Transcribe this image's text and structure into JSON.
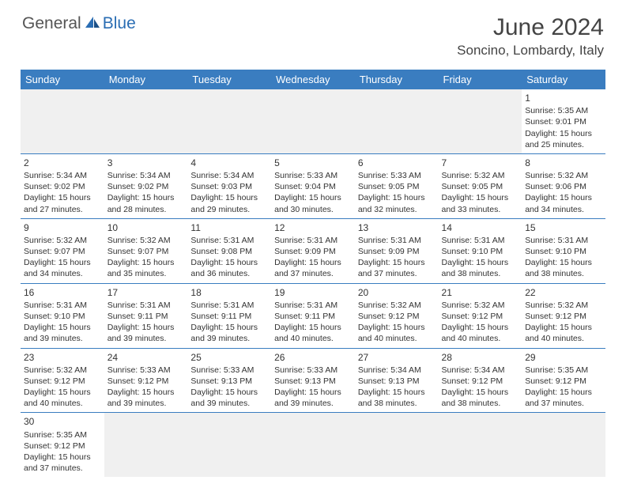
{
  "logo": {
    "part1": "General",
    "part2": "Blue"
  },
  "title": "June 2024",
  "location": "Soncino, Lombardy, Italy",
  "colors": {
    "header_bg": "#3a7dc0",
    "header_text": "#ffffff",
    "empty_bg": "#f0f0f0",
    "border": "#3a7dc0",
    "title_color": "#444444",
    "body_text": "#333333"
  },
  "weekdays": [
    "Sunday",
    "Monday",
    "Tuesday",
    "Wednesday",
    "Thursday",
    "Friday",
    "Saturday"
  ],
  "first_day_index": 6,
  "days": [
    {
      "n": 1,
      "sr": "5:35 AM",
      "ss": "9:01 PM",
      "dl": "15 hours and 25 minutes."
    },
    {
      "n": 2,
      "sr": "5:34 AM",
      "ss": "9:02 PM",
      "dl": "15 hours and 27 minutes."
    },
    {
      "n": 3,
      "sr": "5:34 AM",
      "ss": "9:02 PM",
      "dl": "15 hours and 28 minutes."
    },
    {
      "n": 4,
      "sr": "5:34 AM",
      "ss": "9:03 PM",
      "dl": "15 hours and 29 minutes."
    },
    {
      "n": 5,
      "sr": "5:33 AM",
      "ss": "9:04 PM",
      "dl": "15 hours and 30 minutes."
    },
    {
      "n": 6,
      "sr": "5:33 AM",
      "ss": "9:05 PM",
      "dl": "15 hours and 32 minutes."
    },
    {
      "n": 7,
      "sr": "5:32 AM",
      "ss": "9:05 PM",
      "dl": "15 hours and 33 minutes."
    },
    {
      "n": 8,
      "sr": "5:32 AM",
      "ss": "9:06 PM",
      "dl": "15 hours and 34 minutes."
    },
    {
      "n": 9,
      "sr": "5:32 AM",
      "ss": "9:07 PM",
      "dl": "15 hours and 34 minutes."
    },
    {
      "n": 10,
      "sr": "5:32 AM",
      "ss": "9:07 PM",
      "dl": "15 hours and 35 minutes."
    },
    {
      "n": 11,
      "sr": "5:31 AM",
      "ss": "9:08 PM",
      "dl": "15 hours and 36 minutes."
    },
    {
      "n": 12,
      "sr": "5:31 AM",
      "ss": "9:09 PM",
      "dl": "15 hours and 37 minutes."
    },
    {
      "n": 13,
      "sr": "5:31 AM",
      "ss": "9:09 PM",
      "dl": "15 hours and 37 minutes."
    },
    {
      "n": 14,
      "sr": "5:31 AM",
      "ss": "9:10 PM",
      "dl": "15 hours and 38 minutes."
    },
    {
      "n": 15,
      "sr": "5:31 AM",
      "ss": "9:10 PM",
      "dl": "15 hours and 38 minutes."
    },
    {
      "n": 16,
      "sr": "5:31 AM",
      "ss": "9:10 PM",
      "dl": "15 hours and 39 minutes."
    },
    {
      "n": 17,
      "sr": "5:31 AM",
      "ss": "9:11 PM",
      "dl": "15 hours and 39 minutes."
    },
    {
      "n": 18,
      "sr": "5:31 AM",
      "ss": "9:11 PM",
      "dl": "15 hours and 39 minutes."
    },
    {
      "n": 19,
      "sr": "5:31 AM",
      "ss": "9:11 PM",
      "dl": "15 hours and 40 minutes."
    },
    {
      "n": 20,
      "sr": "5:32 AM",
      "ss": "9:12 PM",
      "dl": "15 hours and 40 minutes."
    },
    {
      "n": 21,
      "sr": "5:32 AM",
      "ss": "9:12 PM",
      "dl": "15 hours and 40 minutes."
    },
    {
      "n": 22,
      "sr": "5:32 AM",
      "ss": "9:12 PM",
      "dl": "15 hours and 40 minutes."
    },
    {
      "n": 23,
      "sr": "5:32 AM",
      "ss": "9:12 PM",
      "dl": "15 hours and 40 minutes."
    },
    {
      "n": 24,
      "sr": "5:33 AM",
      "ss": "9:12 PM",
      "dl": "15 hours and 39 minutes."
    },
    {
      "n": 25,
      "sr": "5:33 AM",
      "ss": "9:13 PM",
      "dl": "15 hours and 39 minutes."
    },
    {
      "n": 26,
      "sr": "5:33 AM",
      "ss": "9:13 PM",
      "dl": "15 hours and 39 minutes."
    },
    {
      "n": 27,
      "sr": "5:34 AM",
      "ss": "9:13 PM",
      "dl": "15 hours and 38 minutes."
    },
    {
      "n": 28,
      "sr": "5:34 AM",
      "ss": "9:12 PM",
      "dl": "15 hours and 38 minutes."
    },
    {
      "n": 29,
      "sr": "5:35 AM",
      "ss": "9:12 PM",
      "dl": "15 hours and 37 minutes."
    },
    {
      "n": 30,
      "sr": "5:35 AM",
      "ss": "9:12 PM",
      "dl": "15 hours and 37 minutes."
    }
  ],
  "labels": {
    "sunrise_prefix": "Sunrise: ",
    "sunset_prefix": "Sunset: ",
    "daylight_prefix": "Daylight: "
  }
}
